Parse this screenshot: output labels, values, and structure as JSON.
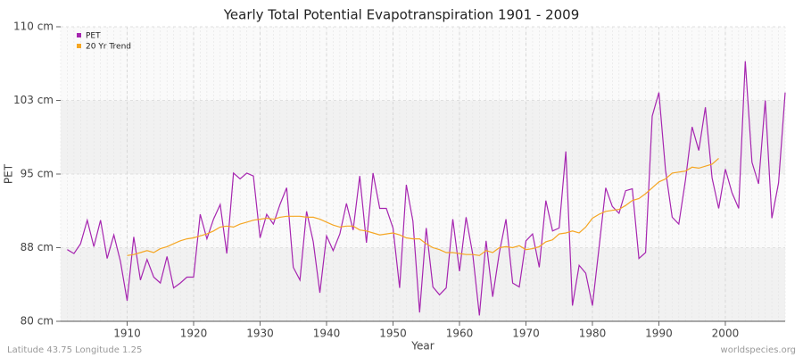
{
  "chart_data": {
    "type": "line",
    "title": "Yearly Total Potential Evapotranspiration 1901 - 2009",
    "y_label": "PET",
    "x_label": "Year",
    "footer_left": "Latitude 43.75 Longitude 1.25",
    "footer_right": "worldspecies.org",
    "x": [
      1901,
      1902,
      1903,
      1904,
      1905,
      1906,
      1907,
      1908,
      1909,
      1910,
      1911,
      1912,
      1913,
      1914,
      1915,
      1916,
      1917,
      1918,
      1919,
      1920,
      1921,
      1922,
      1923,
      1924,
      1925,
      1926,
      1927,
      1928,
      1929,
      1930,
      1931,
      1932,
      1933,
      1934,
      1935,
      1936,
      1937,
      1938,
      1939,
      1940,
      1941,
      1942,
      1943,
      1944,
      1945,
      1946,
      1947,
      1948,
      1949,
      1950,
      1951,
      1952,
      1953,
      1954,
      1955,
      1956,
      1957,
      1958,
      1959,
      1960,
      1961,
      1962,
      1963,
      1964,
      1965,
      1966,
      1967,
      1968,
      1969,
      1970,
      1971,
      1972,
      1973,
      1974,
      1975,
      1976,
      1977,
      1978,
      1979,
      1980,
      1981,
      1982,
      1983,
      1984,
      1985,
      1986,
      1987,
      1988,
      1989,
      1990,
      1991,
      1992,
      1993,
      1994,
      1995,
      1996,
      1997,
      1998,
      1999,
      2000,
      2001,
      2002,
      2003,
      2004,
      2005,
      2006,
      2007,
      2008,
      2009
    ],
    "series": [
      {
        "name": "PET",
        "color": "#a626b0",
        "values": [
          87.3,
          86.9,
          87.9,
          90.3,
          87.6,
          90.3,
          86.4,
          88.8,
          86.1,
          82.1,
          88.6,
          84.2,
          86.3,
          84.5,
          83.9,
          86.6,
          83.4,
          83.9,
          84.5,
          84.5,
          90.9,
          88.4,
          90.4,
          91.9,
          86.9,
          95.1,
          94.5,
          95.1,
          94.8,
          88.5,
          90.9,
          89.9,
          91.9,
          93.6,
          85.5,
          84.2,
          91.2,
          88.1,
          82.9,
          88.7,
          87.2,
          88.9,
          92.0,
          89.3,
          94.8,
          88.0,
          95.1,
          91.5,
          91.5,
          89.5,
          83.4,
          93.9,
          90.2,
          80.9,
          89.5,
          83.5,
          82.7,
          83.4,
          90.4,
          85.1,
          90.6,
          86.8,
          80.6,
          88.2,
          82.5,
          87.0,
          90.4,
          83.9,
          83.5,
          88.2,
          88.9,
          85.5,
          92.3,
          89.2,
          89.5,
          97.3,
          81.6,
          85.7,
          84.9,
          81.6,
          87.5,
          93.6,
          91.7,
          91.0,
          93.3,
          93.5,
          86.4,
          87.0,
          100.9,
          103.3,
          95.4,
          90.6,
          89.9,
          94.4,
          99.8,
          97.4,
          101.8,
          94.6,
          91.5,
          95.5,
          93.1,
          91.5,
          106.5,
          96.2,
          94.0,
          102.5,
          90.5,
          94.1,
          103.3
        ]
      },
      {
        "name": "20 Yr Trend",
        "color": "#f5a623",
        "values": [
          null,
          null,
          null,
          null,
          null,
          null,
          null,
          null,
          null,
          86.7,
          86.8,
          87.0,
          87.2,
          87.0,
          87.4,
          87.6,
          87.9,
          88.2,
          88.4,
          88.5,
          88.7,
          88.9,
          89.2,
          89.6,
          89.7,
          89.6,
          89.9,
          90.1,
          90.3,
          90.4,
          90.5,
          90.4,
          90.6,
          90.7,
          90.7,
          90.7,
          90.6,
          90.6,
          90.4,
          90.1,
          89.8,
          89.6,
          89.7,
          89.7,
          89.3,
          89.2,
          89.0,
          88.8,
          88.9,
          89.0,
          88.8,
          88.5,
          88.4,
          88.4,
          87.9,
          87.5,
          87.3,
          87.0,
          87.0,
          86.9,
          86.8,
          86.8,
          86.7,
          87.2,
          87.0,
          87.5,
          87.6,
          87.5,
          87.7,
          87.3,
          87.4,
          87.6,
          88.1,
          88.3,
          88.9,
          89.0,
          89.2,
          89.0,
          89.6,
          90.5,
          90.9,
          91.2,
          91.3,
          91.4,
          91.8,
          92.3,
          92.5,
          93.0,
          93.6,
          94.2,
          94.5,
          95.1,
          95.2,
          95.3,
          95.7,
          95.6,
          95.8,
          96.0,
          96.6,
          null,
          null,
          null,
          null,
          null,
          null,
          null,
          null,
          null,
          null
        ]
      }
    ],
    "xlim": [
      1900,
      2009
    ],
    "xticks": [
      1910,
      1920,
      1930,
      1940,
      1950,
      1960,
      1970,
      1980,
      1990,
      2000
    ],
    "ylim": [
      80,
      110
    ],
    "yticks": [
      {
        "value": 80,
        "label": "80 cm"
      },
      {
        "value": 87.5,
        "label": "88 cm"
      },
      {
        "value": 95,
        "label": "95 cm"
      },
      {
        "value": 102.5,
        "label": "103 cm"
      },
      {
        "value": 110,
        "label": "110 cm"
      }
    ],
    "grid": true,
    "legend": "top-left"
  }
}
